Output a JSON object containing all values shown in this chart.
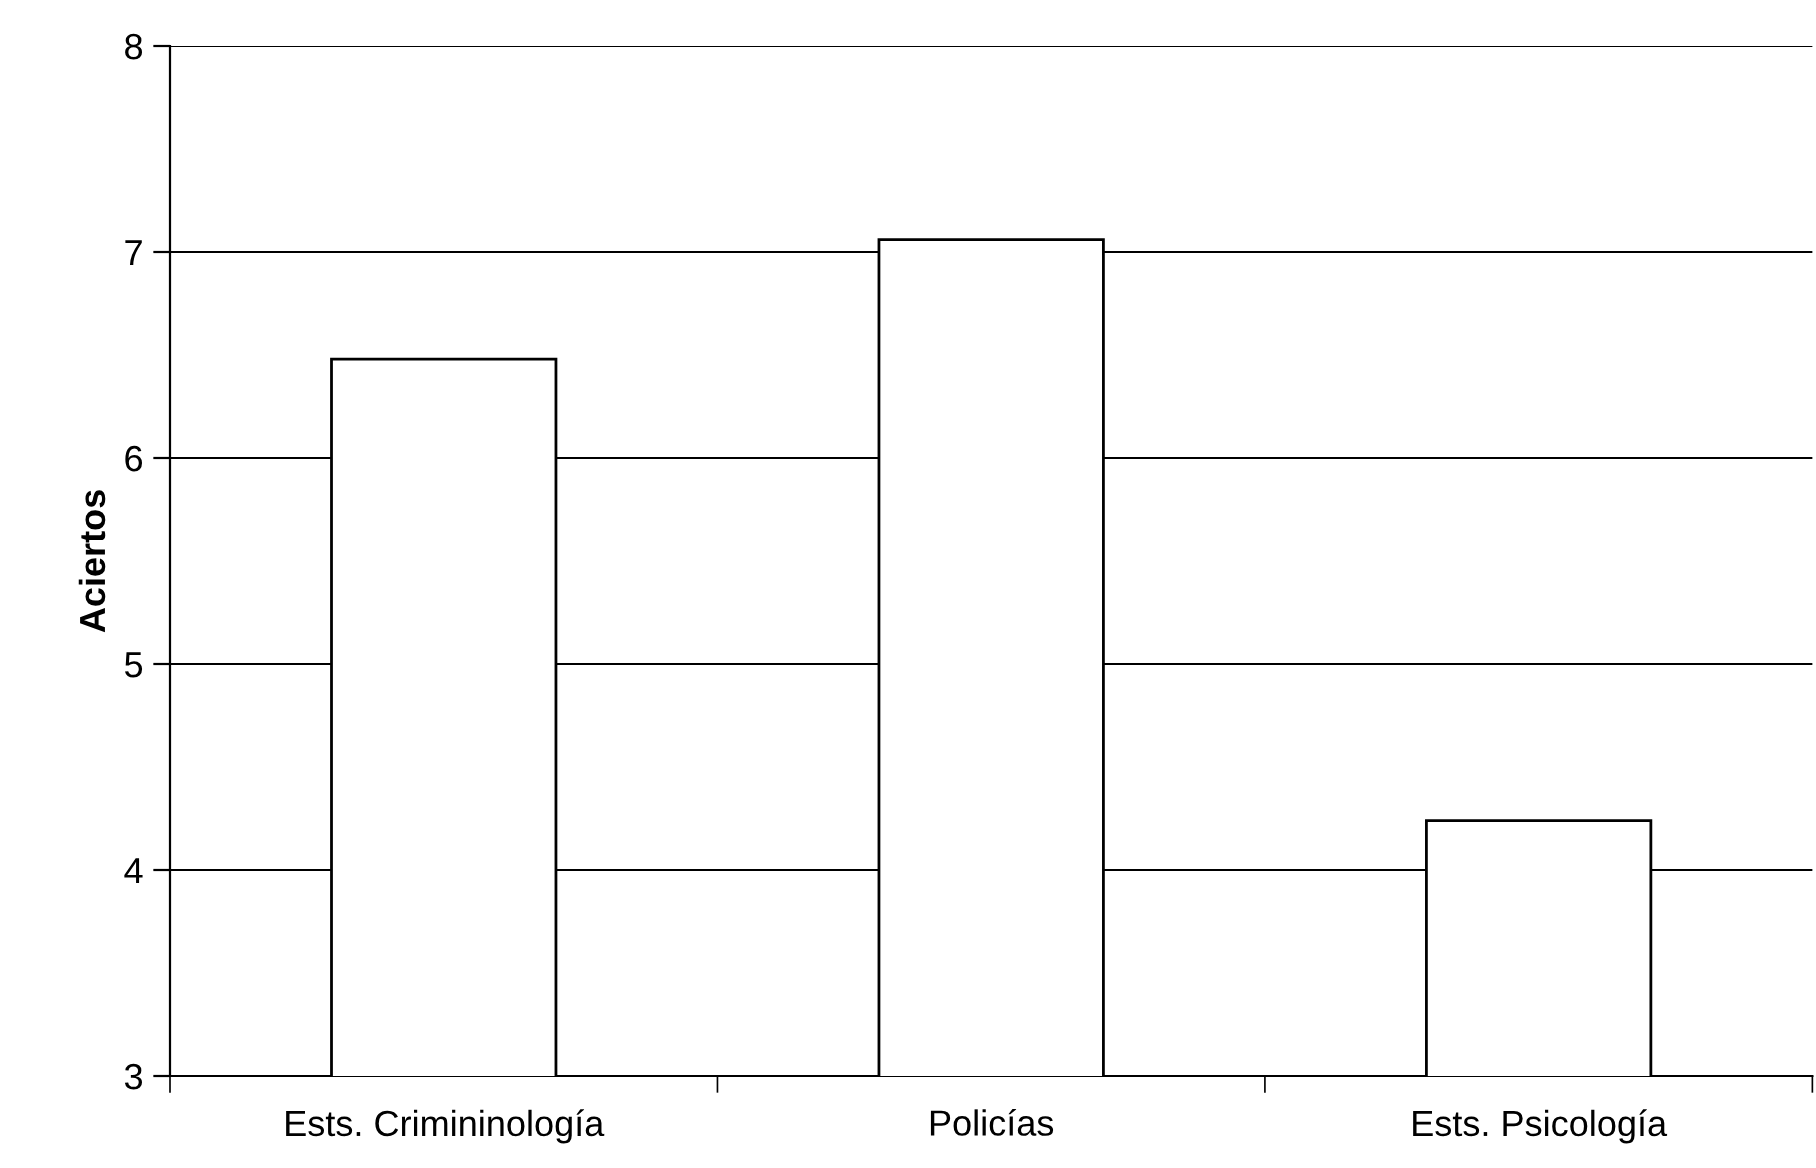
{
  "chart_data": {
    "type": "bar",
    "ylabel": "Aciertos",
    "categories": [
      "Ests. Crimininología",
      "Policías",
      "Ests. Psicología"
    ],
    "values": [
      6.48,
      7.06,
      4.24
    ],
    "color": "#ffffff",
    "ylim": [
      3,
      8
    ],
    "yticks": [
      3,
      4,
      5,
      6,
      7,
      8
    ],
    "grid": "y"
  }
}
